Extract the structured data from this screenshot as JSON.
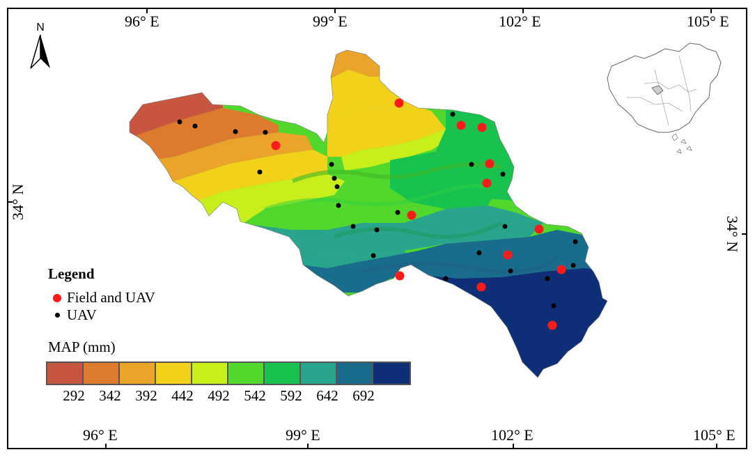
{
  "north_label": "N",
  "longitude_labels_top": [
    "96° E",
    "99° E",
    "102° E",
    "105° E"
  ],
  "longitude_labels_bottom": [
    "96° E",
    "99° E",
    "102° E",
    "105° E"
  ],
  "latitude_label_left": "34° N",
  "latitude_label_right": "34° N",
  "legend": {
    "title": "Legend",
    "items": [
      {
        "label": "Field and UAV",
        "color": "#ff1a1a"
      },
      {
        "label": "UAV",
        "color": "#000000"
      }
    ]
  },
  "map_scale": {
    "title": "MAP (mm)",
    "colors": [
      "#c8553f",
      "#dd7a2e",
      "#eaa42a",
      "#f2d11a",
      "#c8ef1c",
      "#52d82c",
      "#18c24f",
      "#2aa58d",
      "#1a6c8c",
      "#0e2f78"
    ],
    "tick_labels": [
      "292",
      "342",
      "392",
      "442",
      "492",
      "542",
      "592",
      "642",
      "692"
    ]
  }
}
